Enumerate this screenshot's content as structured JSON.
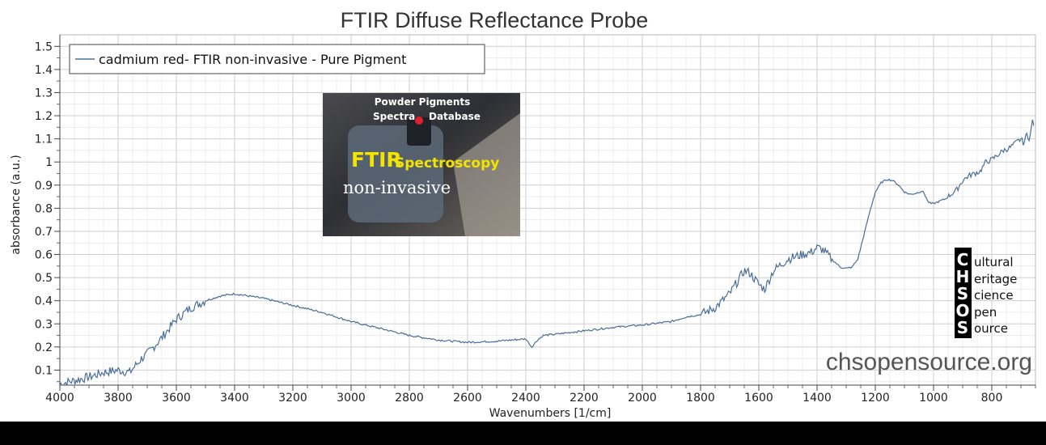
{
  "chart_data": {
    "type": "line",
    "title": "FTIR Diffuse Reflectance Probe",
    "xlabel": "Wavenumbers [1/cm]",
    "ylabel": "absorbance (a.u.)",
    "xlim": [
      4000,
      650
    ],
    "x_reversed": true,
    "ylim": [
      0.035,
      1.55
    ],
    "x_ticks": [
      "4000",
      "3800",
      "3600",
      "3400",
      "3200",
      "3000",
      "2800",
      "2600",
      "2400",
      "2200",
      "2000",
      "1800",
      "1600",
      "1400",
      "1200",
      "1000",
      "800"
    ],
    "y_ticks": [
      "0.1",
      "0.2",
      "0.3",
      "0.4",
      "0.5",
      "0.6",
      "0.7",
      "0.8",
      "0.9",
      "1",
      "1.1",
      "1.2",
      "1.3",
      "1.4",
      "1.5"
    ],
    "grid": true,
    "legend_position": "top-left",
    "series": [
      {
        "name": "cadmium red- FTIR non-invasive - Pure Pigment",
        "color": "#4a6e9a",
        "x": [
          4000,
          3950,
          3900,
          3850,
          3800,
          3760,
          3720,
          3700,
          3650,
          3600,
          3550,
          3500,
          3450,
          3400,
          3350,
          3300,
          3200,
          3100,
          3000,
          2900,
          2800,
          2700,
          2600,
          2500,
          2400,
          2380,
          2360,
          2340,
          2300,
          2200,
          2100,
          2000,
          1900,
          1850,
          1800,
          1750,
          1700,
          1650,
          1630,
          1600,
          1580,
          1550,
          1500,
          1450,
          1420,
          1400,
          1380,
          1350,
          1320,
          1300,
          1280,
          1260,
          1240,
          1220,
          1200,
          1180,
          1160,
          1140,
          1120,
          1100,
          1080,
          1060,
          1040,
          1030,
          1020,
          1010,
          1000,
          980,
          960,
          940,
          920,
          900,
          880,
          860,
          840,
          820,
          800,
          780,
          760,
          740,
          720,
          700,
          690,
          680,
          670,
          660,
          655
        ],
        "y": [
          0.04,
          0.055,
          0.07,
          0.09,
          0.1,
          0.09,
          0.15,
          0.17,
          0.24,
          0.32,
          0.37,
          0.4,
          0.42,
          0.43,
          0.42,
          0.41,
          0.38,
          0.35,
          0.31,
          0.28,
          0.25,
          0.23,
          0.22,
          0.225,
          0.235,
          0.2,
          0.23,
          0.25,
          0.255,
          0.27,
          0.285,
          0.295,
          0.31,
          0.33,
          0.34,
          0.37,
          0.43,
          0.53,
          0.52,
          0.47,
          0.45,
          0.53,
          0.58,
          0.6,
          0.61,
          0.63,
          0.62,
          0.58,
          0.545,
          0.54,
          0.545,
          0.58,
          0.68,
          0.78,
          0.87,
          0.91,
          0.925,
          0.92,
          0.9,
          0.87,
          0.86,
          0.865,
          0.875,
          0.86,
          0.83,
          0.82,
          0.82,
          0.83,
          0.84,
          0.86,
          0.88,
          0.92,
          0.94,
          0.95,
          0.96,
          1.0,
          1.01,
          1.03,
          1.05,
          1.06,
          1.08,
          1.1,
          1.08,
          1.12,
          1.1,
          1.18,
          1.16
        ]
      }
    ]
  },
  "inset": {
    "line1": "Powder Pigments",
    "line2_left": "Spectra",
    "line2_right": "Database",
    "ftir": "FTIR",
    "spectroscopy": "Spectroscopy",
    "non_invasive": "non-invasive"
  },
  "logo": {
    "letters": [
      "C",
      "H",
      "S",
      "O",
      "S"
    ],
    "words": [
      "ultural",
      "eritage",
      "cience",
      "pen",
      "ource"
    ]
  },
  "watermark": "chsopensource.org"
}
